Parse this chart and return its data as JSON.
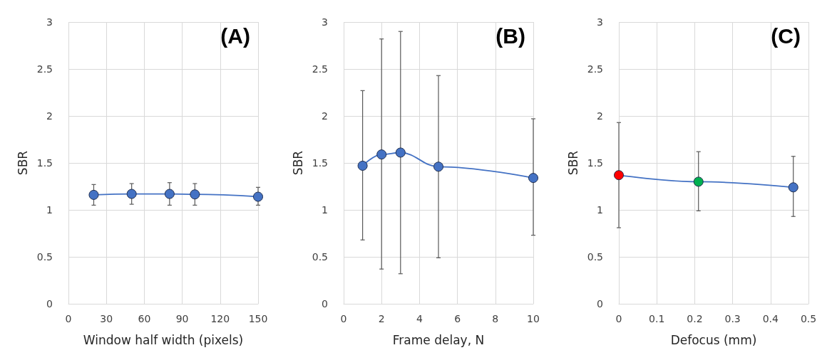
{
  "chart_data": [
    {
      "type": "line",
      "title": "(A)",
      "xlabel": "Window half width (pixels)",
      "ylabel": "SBR",
      "x": [
        20,
        50,
        80,
        100,
        150
      ],
      "xlim": [
        0,
        150
      ],
      "xticks": [
        0,
        30,
        60,
        90,
        120,
        150
      ],
      "ylim": [
        0,
        3
      ],
      "yticks": [
        0,
        0.5,
        1,
        1.5,
        2,
        2.5,
        3
      ],
      "grid": true,
      "marker": "circle",
      "series": [
        {
          "color": "#4472c4",
          "values": [
            1.16,
            1.17,
            1.17,
            1.165,
            1.14
          ],
          "errors": [
            [
              1.05,
              1.27
            ],
            [
              1.06,
              1.28
            ],
            [
              1.05,
              1.29
            ],
            [
              1.05,
              1.28
            ],
            [
              1.05,
              1.24
            ]
          ]
        }
      ]
    },
    {
      "type": "line",
      "title": "(B)",
      "xlabel": "Frame delay, N",
      "ylabel": "SBR",
      "x": [
        1,
        2,
        3,
        5,
        10
      ],
      "xlim": [
        0,
        10
      ],
      "xticks": [
        0,
        2,
        4,
        6,
        8,
        10
      ],
      "ylim": [
        0,
        3
      ],
      "yticks": [
        0,
        0.5,
        1,
        1.5,
        2,
        2.5,
        3
      ],
      "grid": true,
      "marker": "circle",
      "series": [
        {
          "color": "#4472c4",
          "values": [
            1.47,
            1.59,
            1.61,
            1.46,
            1.34
          ],
          "errors": [
            [
              0.68,
              2.27
            ],
            [
              0.37,
              2.82
            ],
            [
              0.32,
              2.9
            ],
            [
              0.49,
              2.43
            ],
            [
              0.73,
              1.97
            ]
          ]
        }
      ]
    },
    {
      "type": "line",
      "title": "(C)",
      "xlabel": "Defocus (mm)",
      "ylabel": "SBR",
      "x": [
        0,
        0.21,
        0.46
      ],
      "xlim": [
        0,
        0.5
      ],
      "xticks": [
        0,
        0.1,
        0.2,
        0.3,
        0.4,
        0.5
      ],
      "ylim": [
        0,
        3
      ],
      "yticks": [
        0,
        0.5,
        1,
        1.5,
        2,
        2.5,
        3
      ],
      "grid": true,
      "marker": "circle",
      "series": [
        {
          "color": "#4472c4",
          "colors": [
            "#ff0000",
            "#00b050",
            "#4472c4"
          ],
          "values": [
            1.37,
            1.3,
            1.24
          ],
          "errors": [
            [
              0.81,
              1.93
            ],
            [
              0.99,
              1.62
            ],
            [
              0.93,
              1.57
            ]
          ]
        }
      ]
    }
  ]
}
